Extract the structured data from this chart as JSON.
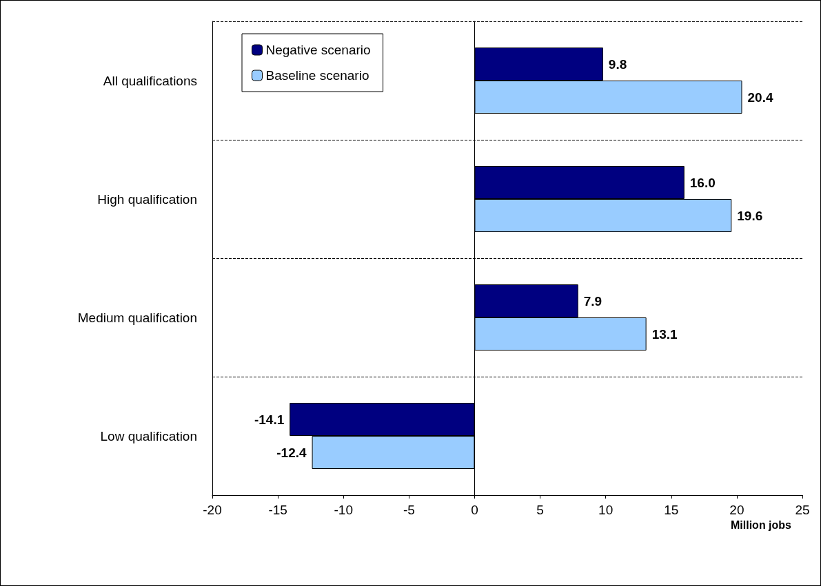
{
  "chart_data": {
    "type": "bar",
    "orientation": "horizontal",
    "categories": [
      "All qualifications",
      "High qualification",
      "Medium qualification",
      "Low qualification"
    ],
    "series": [
      {
        "name": "Negative scenario",
        "color": "#000080",
        "values": [
          9.8,
          16.0,
          7.9,
          -14.1
        ],
        "value_labels": [
          "9.8",
          "16.0",
          "7.9",
          "-14.1"
        ]
      },
      {
        "name": "Baseline scenario",
        "color": "#99ccff",
        "values": [
          20.4,
          19.6,
          13.1,
          -12.4
        ],
        "value_labels": [
          "20.4",
          "19.6",
          "13.1",
          "-12.4"
        ]
      }
    ],
    "xlabel": "Million jobs",
    "xlim": [
      -20,
      25
    ],
    "xticks": [
      -20,
      -15,
      -10,
      -5,
      0,
      5,
      10,
      15,
      20,
      25
    ],
    "grid": "y",
    "legend": "top left"
  }
}
